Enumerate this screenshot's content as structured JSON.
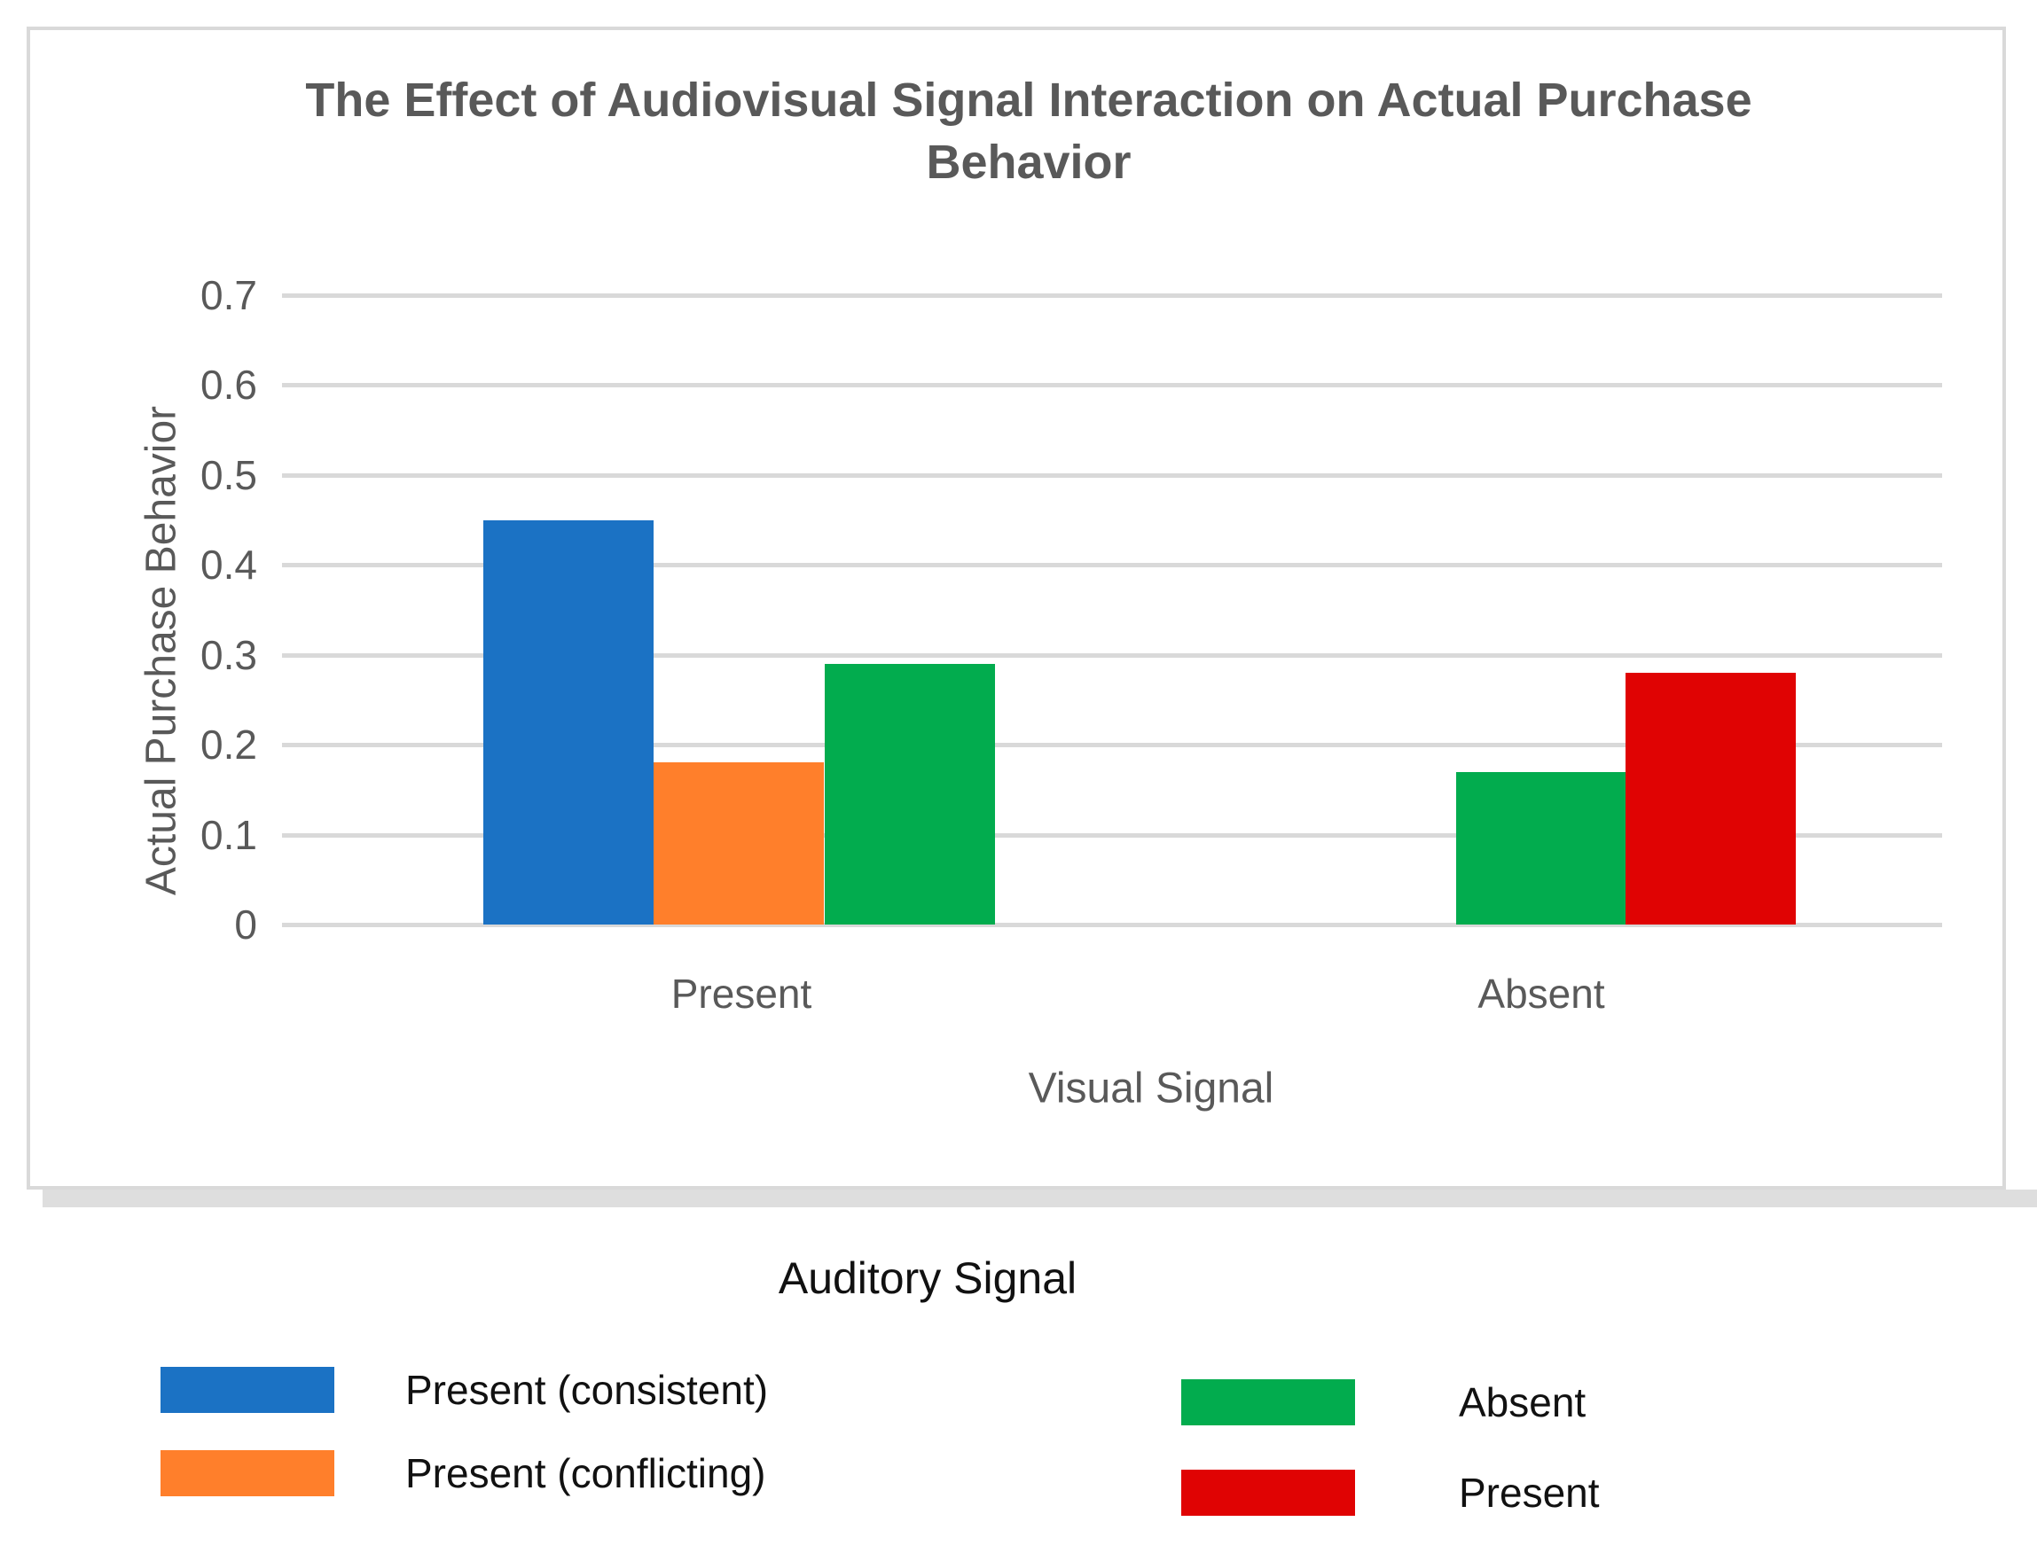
{
  "chart_data": {
    "type": "bar",
    "title": "The Effect of Audiovisual Signal Interaction on Actual Purchase Behavior",
    "ylabel": "Actual Purchase Behavior",
    "xlabel": "Visual Signal",
    "legend_title": "Auditory Signal",
    "legend_position": "bottom",
    "grid": true,
    "ylim": [
      0,
      0.7
    ],
    "yticks": [
      0,
      0.1,
      0.2,
      0.3,
      0.4,
      0.5,
      0.6,
      0.7
    ],
    "categories": [
      "Present",
      "Absent"
    ],
    "series": [
      {
        "name": "Present (consistent)",
        "color": "#1B72C4",
        "values": [
          0.45,
          null
        ]
      },
      {
        "name": "Present (conflicting)",
        "color": "#FF7F2B",
        "values": [
          0.18,
          null
        ]
      },
      {
        "name": "Absent",
        "color": "#02AC4E",
        "values": [
          0.29,
          0.17
        ]
      },
      {
        "name": "Present",
        "color": "#E00303",
        "values": [
          null,
          0.28
        ]
      }
    ],
    "colors": {
      "grid": "#D9D9D9",
      "frame_border": "#D9D9D9",
      "frame_shadow": "#DEDEDE",
      "axis_text": "#595959",
      "title_text": "#595959",
      "legend_text": "#111111"
    }
  }
}
